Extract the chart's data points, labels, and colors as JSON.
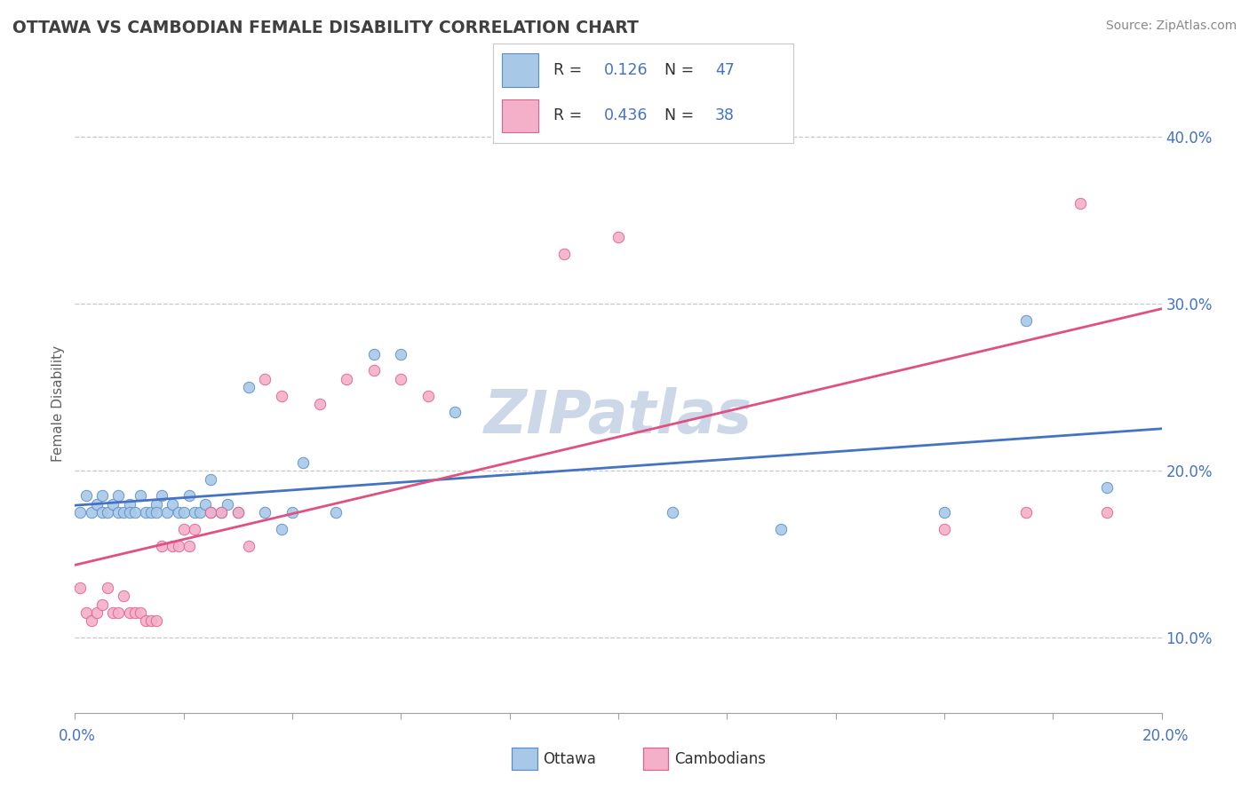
{
  "title": "OTTAWA VS CAMBODIAN FEMALE DISABILITY CORRELATION CHART",
  "source": "Source: ZipAtlas.com",
  "ylabel": "Female Disability",
  "xlim": [
    0.0,
    0.2
  ],
  "ylim": [
    0.055,
    0.425
  ],
  "yticks": [
    0.1,
    0.2,
    0.3,
    0.4
  ],
  "ytick_labels": [
    "10.0%",
    "20.0%",
    "30.0%",
    "40.0%"
  ],
  "xtick_labels": [
    "0.0%",
    "",
    "",
    "",
    "",
    "20.0%"
  ],
  "ottawa_color": "#a8c8e8",
  "cambodian_color": "#f4b0c8",
  "ottawa_edge_color": "#5b8dc8",
  "cambodian_edge_color": "#e06090",
  "ottawa_line_color": "#4472c4",
  "cambodian_line_color": "#e05080",
  "ottawa_R": 0.126,
  "ottawa_N": 47,
  "cambodian_R": 0.436,
  "cambodian_N": 38,
  "ottawa_scatter_x": [
    0.001,
    0.002,
    0.003,
    0.004,
    0.005,
    0.005,
    0.006,
    0.007,
    0.008,
    0.008,
    0.009,
    0.01,
    0.01,
    0.011,
    0.012,
    0.013,
    0.014,
    0.015,
    0.015,
    0.016,
    0.017,
    0.018,
    0.019,
    0.02,
    0.021,
    0.022,
    0.023,
    0.024,
    0.025,
    0.025,
    0.027,
    0.028,
    0.03,
    0.032,
    0.035,
    0.038,
    0.04,
    0.042,
    0.048,
    0.055,
    0.06,
    0.07,
    0.11,
    0.13,
    0.16,
    0.175,
    0.19
  ],
  "ottawa_scatter_y": [
    0.175,
    0.185,
    0.175,
    0.18,
    0.175,
    0.185,
    0.175,
    0.18,
    0.175,
    0.185,
    0.175,
    0.18,
    0.175,
    0.175,
    0.185,
    0.175,
    0.175,
    0.18,
    0.175,
    0.185,
    0.175,
    0.18,
    0.175,
    0.175,
    0.185,
    0.175,
    0.175,
    0.18,
    0.175,
    0.195,
    0.175,
    0.18,
    0.175,
    0.25,
    0.175,
    0.165,
    0.175,
    0.205,
    0.175,
    0.27,
    0.27,
    0.235,
    0.175,
    0.165,
    0.175,
    0.29,
    0.19
  ],
  "cambodian_scatter_x": [
    0.001,
    0.002,
    0.003,
    0.004,
    0.005,
    0.006,
    0.007,
    0.008,
    0.009,
    0.01,
    0.011,
    0.012,
    0.013,
    0.014,
    0.015,
    0.016,
    0.018,
    0.019,
    0.02,
    0.021,
    0.022,
    0.025,
    0.027,
    0.03,
    0.032,
    0.035,
    0.038,
    0.045,
    0.05,
    0.055,
    0.06,
    0.065,
    0.09,
    0.1,
    0.16,
    0.175,
    0.185,
    0.19
  ],
  "cambodian_scatter_y": [
    0.13,
    0.115,
    0.11,
    0.115,
    0.12,
    0.13,
    0.115,
    0.115,
    0.125,
    0.115,
    0.115,
    0.115,
    0.11,
    0.11,
    0.11,
    0.155,
    0.155,
    0.155,
    0.165,
    0.155,
    0.165,
    0.175,
    0.175,
    0.175,
    0.155,
    0.255,
    0.245,
    0.24,
    0.255,
    0.26,
    0.255,
    0.245,
    0.33,
    0.34,
    0.165,
    0.175,
    0.36,
    0.175
  ],
  "background_color": "#ffffff",
  "grid_color": "#c8c8c8",
  "title_color": "#404040",
  "axis_label_color": "#4472c4",
  "watermark_text": "ZIPatlas",
  "watermark_color": "#ccd8e8"
}
